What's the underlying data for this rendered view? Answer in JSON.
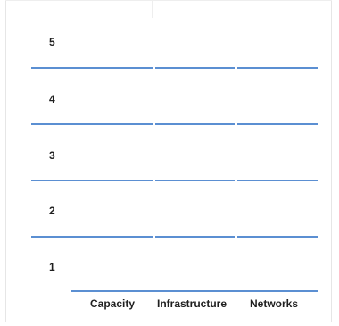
{
  "levels": [
    "5",
    "4",
    "3",
    "2",
    "1"
  ],
  "columns": [
    "Capacity",
    "Infrastructure",
    "Networks"
  ],
  "colors": {
    "divider": "#5b8fd2",
    "text": "#1f1f1f",
    "background": "#ffffff"
  }
}
